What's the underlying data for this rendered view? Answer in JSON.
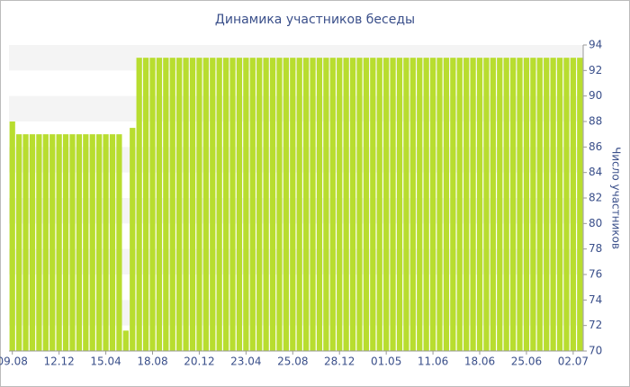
{
  "chart_data": {
    "type": "bar",
    "title": "Динамика участников беседы",
    "y_axis_label": "Число участников",
    "categories": [
      "09.08",
      null,
      null,
      null,
      null,
      null,
      null,
      "12.12",
      null,
      null,
      null,
      null,
      null,
      null,
      "15.04",
      null,
      null,
      null,
      null,
      null,
      null,
      "18.08",
      null,
      null,
      null,
      null,
      null,
      null,
      "20.12",
      null,
      null,
      null,
      null,
      null,
      null,
      "23.04",
      null,
      null,
      null,
      null,
      null,
      null,
      "25.08",
      null,
      null,
      null,
      null,
      null,
      null,
      "28.12",
      null,
      null,
      null,
      null,
      null,
      null,
      "01.05",
      null,
      null,
      null,
      null,
      null,
      null,
      "11.06",
      null,
      null,
      null,
      null,
      null,
      null,
      "18.06",
      null,
      null,
      null,
      null,
      null,
      null,
      "25.06",
      null,
      null,
      null,
      null,
      null,
      null,
      "02.07",
      null
    ],
    "values": [
      88,
      87,
      87,
      87,
      87,
      87,
      87,
      87,
      87,
      87,
      87,
      87,
      87,
      87,
      87,
      87,
      87,
      71.6,
      87.5,
      93,
      93,
      93,
      93,
      93,
      93,
      93,
      93,
      93,
      93,
      93,
      93,
      93,
      93,
      93,
      93,
      93,
      93,
      93,
      93,
      93,
      93,
      93,
      93,
      93,
      93,
      93,
      93,
      93,
      93,
      93,
      93,
      93,
      93,
      93,
      93,
      93,
      93,
      93,
      93,
      93,
      93,
      93,
      93,
      93,
      93,
      93,
      93,
      93,
      93,
      93,
      93,
      93,
      93,
      93,
      93,
      93,
      93,
      93,
      93,
      93,
      93,
      93,
      93,
      93,
      93,
      93
    ],
    "color": "#b8dd2f",
    "ylim": [
      70,
      94
    ],
    "yticks": [
      70,
      72,
      74,
      76,
      78,
      80,
      82,
      84,
      86,
      88,
      90,
      92,
      94
    ],
    "grid": true
  }
}
